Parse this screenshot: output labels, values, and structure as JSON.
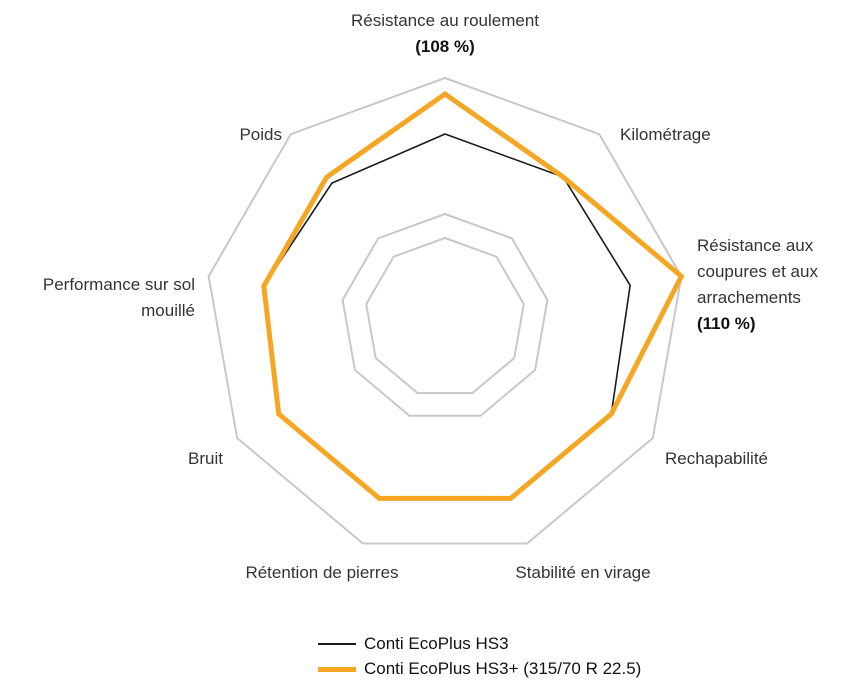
{
  "chart_data": {
    "type": "radar",
    "categories": [
      "Résistance au roulement",
      "Kilométrage",
      "Résistance aux coupures et aux arrachements",
      "Rechapabilité",
      "Stabilité en virage",
      "Rétention de pierres",
      "Bruit",
      "Performance sur sol mouillé",
      "Poids"
    ],
    "rlim": [
      80,
      110
    ],
    "rticks": [
      90,
      93,
      110
    ],
    "grid": true,
    "series": [
      {
        "name": "Conti EcoPlus HS3",
        "color": "#1a1a1a",
        "values": [
          103,
          103,
          103.5,
          104,
          104,
          104,
          104,
          103,
          102
        ]
      },
      {
        "name": "Conti EcoPlus HS3+ (315/70 R 22.5)",
        "color": "#f5a623",
        "values": [
          108,
          103,
          110,
          104,
          104,
          104,
          104,
          103,
          103
        ],
        "value_labels": [
          "(108 %)",
          null,
          "(110 %)",
          null,
          null,
          null,
          null,
          null,
          null
        ]
      }
    ]
  }
}
